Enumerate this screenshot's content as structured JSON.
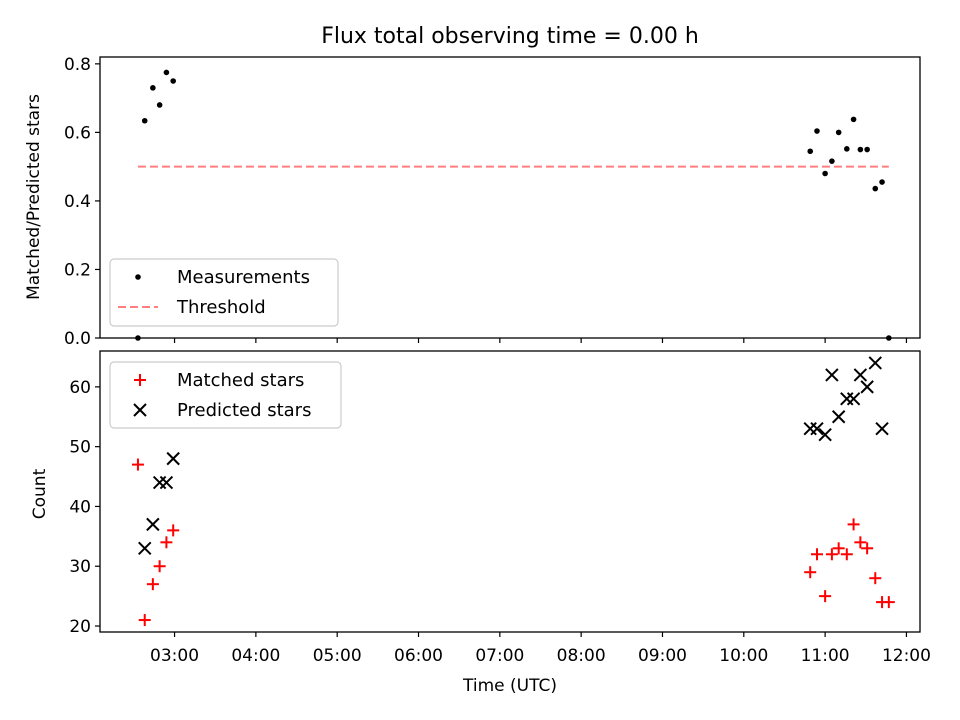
{
  "chart_data": [
    {
      "type": "scatter",
      "title": "Flux total observing time = 0.00 h",
      "ylabel": "Matched/Predicted stars",
      "ylim": [
        0,
        0.82
      ],
      "yticks": [
        "0.0",
        "0.2",
        "0.4",
        "0.6",
        "0.8"
      ],
      "xlim": [
        "02:05",
        "12:10"
      ],
      "grid": false,
      "legend_position": "lower-left",
      "series": [
        {
          "name": "Measurements",
          "marker": "dot",
          "color": "#000000",
          "x": [
            "02:33",
            "02:38",
            "02:44",
            "02:49",
            "02:54",
            "02:59",
            "10:49",
            "10:54",
            "11:00",
            "11:05",
            "11:10",
            "11:16",
            "11:21",
            "11:26",
            "11:31",
            "11:37",
            "11:42",
            "11:47"
          ],
          "y": [
            0.0,
            0.634,
            0.73,
            0.68,
            0.775,
            0.75,
            0.545,
            0.604,
            0.48,
            0.516,
            0.6,
            0.552,
            0.638,
            0.55,
            0.55,
            0.436,
            0.455,
            0.0
          ]
        },
        {
          "name": "Threshold",
          "style": "dashed",
          "color": "#ff7f7f",
          "x": [
            "02:33",
            "11:47"
          ],
          "y": [
            0.5,
            0.5
          ]
        }
      ]
    },
    {
      "type": "scatter",
      "xlabel": "Time (UTC)",
      "ylabel": "Count",
      "ylim": [
        19,
        66
      ],
      "yticks": [
        "20",
        "30",
        "40",
        "50",
        "60"
      ],
      "xticks": [
        "03:00",
        "04:00",
        "05:00",
        "06:00",
        "07:00",
        "08:00",
        "09:00",
        "10:00",
        "11:00",
        "12:00"
      ],
      "xlim": [
        "02:05",
        "12:10"
      ],
      "grid": false,
      "legend_position": "upper-left",
      "series": [
        {
          "name": "Matched stars",
          "marker": "plus",
          "color": "#ff0000",
          "x": [
            "02:33",
            "02:38",
            "02:44",
            "02:49",
            "02:54",
            "02:59",
            "10:49",
            "10:54",
            "11:00",
            "11:05",
            "11:10",
            "11:16",
            "11:21",
            "11:26",
            "11:31",
            "11:37",
            "11:42",
            "11:47"
          ],
          "y": [
            47,
            21,
            27,
            30,
            34,
            36,
            29,
            32,
            25,
            32,
            33,
            32,
            37,
            34,
            33,
            28,
            24,
            24
          ]
        },
        {
          "name": "Predicted stars",
          "marker": "x",
          "color": "#000000",
          "x": [
            "02:38",
            "02:44",
            "02:49",
            "02:54",
            "02:59",
            "10:49",
            "10:54",
            "11:00",
            "11:05",
            "11:10",
            "11:16",
            "11:21",
            "11:26",
            "11:31",
            "11:37",
            "11:42"
          ],
          "y": [
            33,
            37,
            44,
            44,
            48,
            53,
            53,
            52,
            62,
            55,
            58,
            58,
            62,
            60,
            64,
            53
          ]
        }
      ]
    }
  ]
}
